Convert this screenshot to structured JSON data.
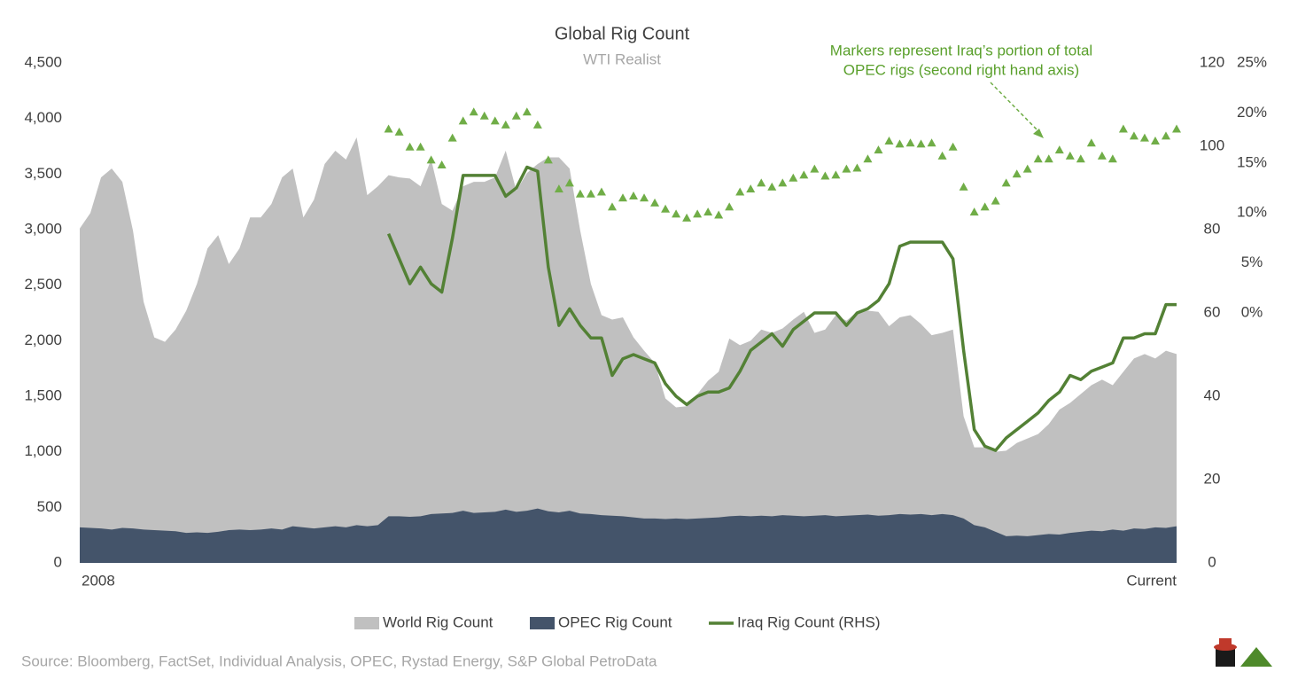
{
  "chart_data": {
    "type": "combo",
    "title": "Global Rig Count",
    "subtitle": "WTI Realist",
    "annotation": [
      "Markers represent Iraq’s portion of total",
      "OPEC rigs (second right hand axis)"
    ],
    "source": "Source: Bloomberg, FactSet, Individual Analysis, OPEC, Rystad Energy, S&P Global PetroData",
    "categories": [
      "2008",
      null,
      null,
      null,
      null,
      null,
      null,
      null,
      null,
      null,
      null,
      null,
      null,
      null,
      null,
      null,
      null,
      null,
      null,
      null,
      null,
      null,
      null,
      null,
      null,
      null,
      null,
      null,
      null,
      null,
      null,
      null,
      null,
      null,
      null,
      null,
      null,
      null,
      null,
      null,
      null,
      null,
      null,
      null,
      null,
      null,
      null,
      null,
      null,
      null,
      null,
      null,
      null,
      null,
      null,
      null,
      null,
      null,
      null,
      null,
      null,
      null,
      null,
      null,
      null,
      null,
      null,
      null,
      null,
      null,
      null,
      null,
      null,
      null,
      null,
      null,
      null,
      null,
      null,
      null,
      null,
      null,
      null,
      null,
      null,
      null,
      null,
      null,
      null,
      null,
      null,
      null,
      null,
      null,
      null,
      null,
      null,
      null,
      null,
      null,
      null,
      null,
      null,
      "Current"
    ],
    "ylim": [
      0,
      4500
    ],
    "yticks": [
      0,
      500,
      {
        "value": 1000,
        "label": "1,000"
      },
      {
        "value": 1500,
        "label": "1,500"
      },
      {
        "value": 2000,
        "label": "2,000"
      },
      {
        "value": 2500,
        "label": "2,500"
      },
      {
        "value": 3000,
        "label": "3,000"
      },
      {
        "value": 3500,
        "label": "3,500"
      },
      {
        "value": 4000,
        "label": "4,000"
      },
      {
        "value": 4500,
        "label": "4,500"
      }
    ],
    "y2lim": [
      0,
      120
    ],
    "y2ticks": [
      0,
      20,
      40,
      60,
      80,
      100,
      120
    ],
    "y3lim": [
      -25,
      25
    ],
    "y3ticks": [
      {
        "value": 0,
        "label": "0%"
      },
      {
        "value": 5,
        "label": "5%"
      },
      {
        "value": 10,
        "label": "10%"
      },
      {
        "value": 15,
        "label": "15%"
      },
      {
        "value": 20,
        "label": "20%"
      },
      {
        "value": 25,
        "label": "25%"
      }
    ],
    "grid": false,
    "legend": "bottom",
    "series": [
      {
        "name": "World Rig Count",
        "type": "area",
        "color": "#c0c0c0",
        "values": [
          3010,
          3150,
          3470,
          3550,
          3430,
          2990,
          2350,
          2030,
          1990,
          2100,
          2270,
          2510,
          2830,
          2950,
          2690,
          2830,
          3110,
          3110,
          3230,
          3470,
          3550,
          3110,
          3270,
          3590,
          3710,
          3630,
          3830,
          3310,
          3390,
          3490,
          3470,
          3460,
          3390,
          3630,
          3230,
          3170,
          3390,
          3430,
          3430,
          3470,
          3710,
          3350,
          3510,
          3590,
          3650,
          3650,
          3550,
          2990,
          2510,
          2230,
          2190,
          2210,
          2030,
          1910,
          1800,
          1480,
          1400,
          1410,
          1520,
          1640,
          1720,
          2020,
          1960,
          2000,
          2100,
          2070,
          2110,
          2190,
          2260,
          2070,
          2100,
          2230,
          2180,
          2260,
          2270,
          2260,
          2130,
          2210,
          2230,
          2150,
          2050,
          2070,
          2100,
          1320,
          1040,
          1040,
          1000,
          1010,
          1080,
          1120,
          1160,
          1250,
          1380,
          1440,
          1520,
          1600,
          1650,
          1600,
          1720,
          1840,
          1880,
          1840,
          1910,
          1880
        ]
      },
      {
        "name": "OPEC Rig Count",
        "type": "area",
        "color": "#44546a",
        "values": [
          320,
          315,
          310,
          300,
          315,
          310,
          300,
          295,
          290,
          285,
          270,
          275,
          270,
          280,
          295,
          300,
          295,
          300,
          310,
          300,
          330,
          320,
          310,
          320,
          330,
          320,
          340,
          330,
          340,
          420,
          420,
          415,
          420,
          440,
          445,
          450,
          470,
          450,
          455,
          460,
          480,
          460,
          470,
          490,
          465,
          455,
          470,
          445,
          440,
          430,
          425,
          420,
          410,
          400,
          400,
          395,
          400,
          395,
          400,
          405,
          410,
          420,
          425,
          420,
          425,
          420,
          430,
          425,
          420,
          425,
          430,
          420,
          425,
          430,
          435,
          425,
          430,
          440,
          435,
          440,
          430,
          440,
          430,
          400,
          340,
          320,
          280,
          240,
          245,
          240,
          250,
          260,
          255,
          270,
          280,
          290,
          285,
          300,
          290,
          310,
          305,
          320,
          315,
          330
        ]
      },
      {
        "name": "Iraq Rig Count (RHS)",
        "type": "line",
        "axis": "y2",
        "color": "#538135",
        "values": [
          null,
          null,
          null,
          null,
          null,
          null,
          null,
          null,
          null,
          null,
          null,
          null,
          null,
          null,
          null,
          null,
          null,
          null,
          null,
          null,
          null,
          null,
          null,
          null,
          null,
          null,
          null,
          null,
          null,
          79,
          73,
          67,
          71,
          67,
          65,
          78,
          93,
          93,
          93,
          93,
          88,
          90,
          95,
          94,
          71,
          57,
          61,
          57,
          54,
          54,
          45,
          49,
          50,
          49,
          48,
          43,
          40,
          38,
          40,
          41,
          41,
          42,
          46,
          51,
          53,
          55,
          52,
          56,
          58,
          60,
          60,
          60,
          57,
          60,
          61,
          63,
          67,
          76,
          77,
          77,
          77,
          77,
          73,
          51,
          32,
          28,
          27,
          30,
          32,
          34,
          36,
          39,
          41,
          45,
          44,
          46,
          47,
          48,
          54,
          54,
          55,
          55,
          62,
          62
        ]
      },
      {
        "type": "marker",
        "axis": "y3",
        "color": "#70ad47",
        "values": [
          null,
          null,
          null,
          null,
          null,
          null,
          null,
          null,
          null,
          null,
          null,
          null,
          null,
          null,
          null,
          null,
          null,
          null,
          null,
          null,
          null,
          null,
          null,
          null,
          null,
          null,
          null,
          null,
          null,
          18.4,
          18.1,
          16.6,
          16.6,
          15.3,
          14.8,
          17.5,
          19.2,
          20.1,
          19.7,
          19.2,
          18.8,
          19.7,
          20.1,
          18.8,
          15.3,
          12.4,
          13.0,
          11.9,
          11.9,
          12.1,
          10.6,
          11.5,
          11.7,
          11.5,
          11.0,
          10.4,
          9.9,
          9.5,
          9.9,
          10.1,
          9.8,
          10.6,
          12.1,
          12.4,
          13.0,
          12.6,
          13.0,
          13.5,
          13.8,
          14.4,
          13.7,
          13.8,
          14.4,
          14.5,
          15.4,
          16.3,
          17.2,
          16.9,
          17.0,
          16.9,
          17.0,
          15.7,
          16.6,
          12.6,
          10.1,
          10.6,
          11.2,
          13.0,
          13.9,
          14.4,
          15.4,
          15.4,
          16.3,
          15.7,
          15.4,
          17.0,
          15.7,
          15.4,
          18.4,
          17.7,
          17.5,
          17.2,
          17.7,
          18.4
        ]
      }
    ]
  }
}
